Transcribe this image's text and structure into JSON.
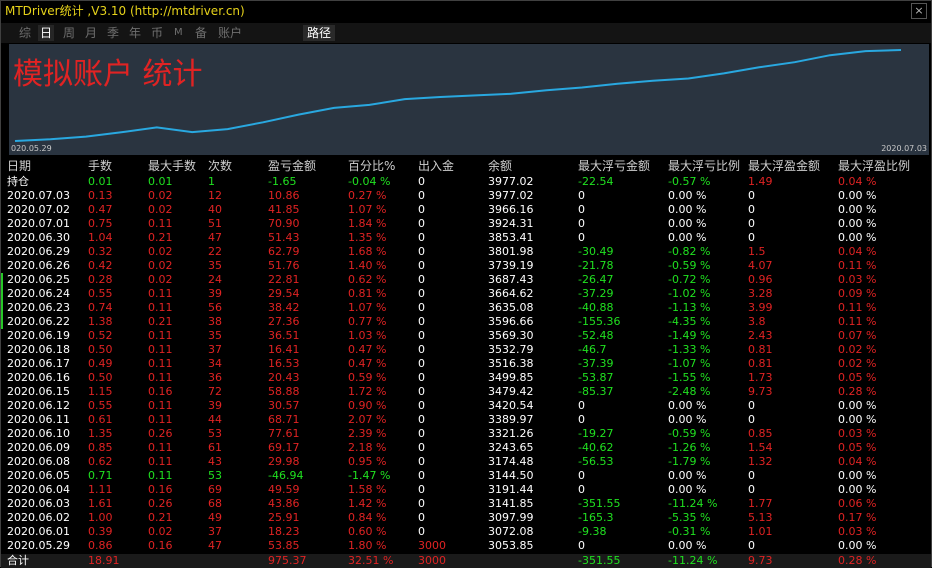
{
  "window": {
    "title": "MTDriver统计 ,V3.10 (http://mtdriver.cn)",
    "close": "×"
  },
  "toolbar": {
    "tabs": [
      "综",
      "日",
      "周",
      "月",
      "季",
      "年",
      "币",
      "M",
      "备",
      "账户"
    ],
    "active_tab": "日",
    "route_label": "路径"
  },
  "chart": {
    "title": "模拟账户 统计",
    "x_start_label": "020.05.29",
    "x_end_label": "2020.07.03",
    "line_color": "#29a8e0"
  },
  "chart_data": {
    "type": "line",
    "title": "模拟账户 统计",
    "categories": [
      "2020.05.29",
      "2020.06.01",
      "2020.06.02",
      "2020.06.03",
      "2020.06.04",
      "2020.06.05",
      "2020.06.08",
      "2020.06.09",
      "2020.06.10",
      "2020.06.11",
      "2020.06.12",
      "2020.06.15",
      "2020.06.16",
      "2020.06.17",
      "2020.06.18",
      "2020.06.19",
      "2020.06.22",
      "2020.06.23",
      "2020.06.24",
      "2020.06.25",
      "2020.06.26",
      "2020.06.29",
      "2020.06.30",
      "2020.07.01",
      "2020.07.02",
      "2020.07.03"
    ],
    "series": [
      {
        "values": [
          3053.85,
          3072.08,
          3097.99,
          3141.85,
          3191.44,
          3144.5,
          3174.48,
          3243.65,
          3321.26,
          3389.97,
          3420.54,
          3479.42,
          3499.85,
          3516.38,
          3532.79,
          3569.3,
          3596.66,
          3635.08,
          3664.62,
          3687.43,
          3739.19,
          3801.98,
          3853.41,
          3924.31,
          3966.16,
          3977.02
        ]
      }
    ]
  },
  "table": {
    "headers": [
      "日期",
      "手数",
      "最大手数",
      "次数",
      "盈亏金额",
      "百分比%",
      "出入金",
      "余额",
      "最大浮亏金额",
      "最大浮亏比例",
      "最大浮盈金额",
      "最大浮盈比例"
    ],
    "rows": [
      {
        "date": "持仓",
        "lots": "0.01",
        "max_lots": "0.01",
        "count": "1",
        "pl": "-1.65",
        "pct": "-0.04 %",
        "io": "0",
        "balance": "3977.02",
        "mfl": "-22.54",
        "mflp": "-0.57 %",
        "mfp": "1.49",
        "mfpp": "0.04 %",
        "color": "green",
        "marker": false
      },
      {
        "date": "2020.07.03",
        "lots": "0.13",
        "max_lots": "0.02",
        "count": "12",
        "pl": "10.86",
        "pct": "0.27 %",
        "io": "0",
        "balance": "3977.02",
        "mfl": "0",
        "mflp": "0.00 %",
        "mfp": "0",
        "mfpp": "0.00 %",
        "color": "red",
        "marker": false
      },
      {
        "date": "2020.07.02",
        "lots": "0.47",
        "max_lots": "0.02",
        "count": "40",
        "pl": "41.85",
        "pct": "1.07 %",
        "io": "0",
        "balance": "3966.16",
        "mfl": "0",
        "mflp": "0.00 %",
        "mfp": "0",
        "mfpp": "0.00 %",
        "color": "red",
        "marker": false
      },
      {
        "date": "2020.07.01",
        "lots": "0.75",
        "max_lots": "0.11",
        "count": "51",
        "pl": "70.90",
        "pct": "1.84 %",
        "io": "0",
        "balance": "3924.31",
        "mfl": "0",
        "mflp": "0.00 %",
        "mfp": "0",
        "mfpp": "0.00 %",
        "color": "red",
        "marker": false
      },
      {
        "date": "2020.06.30",
        "lots": "1.04",
        "max_lots": "0.21",
        "count": "47",
        "pl": "51.43",
        "pct": "1.35 %",
        "io": "0",
        "balance": "3853.41",
        "mfl": "0",
        "mflp": "0.00 %",
        "mfp": "0",
        "mfpp": "0.00 %",
        "color": "red",
        "marker": false
      },
      {
        "date": "2020.06.29",
        "lots": "0.32",
        "max_lots": "0.02",
        "count": "22",
        "pl": "62.79",
        "pct": "1.68 %",
        "io": "0",
        "balance": "3801.98",
        "mfl": "-30.49",
        "mflp": "-0.82 %",
        "mfp": "1.5",
        "mfpp": "0.04 %",
        "color": "red",
        "marker": false
      },
      {
        "date": "2020.06.26",
        "lots": "0.42",
        "max_lots": "0.02",
        "count": "35",
        "pl": "51.76",
        "pct": "1.40 %",
        "io": "0",
        "balance": "3739.19",
        "mfl": "-21.78",
        "mflp": "-0.59 %",
        "mfp": "4.07",
        "mfpp": "0.11 %",
        "color": "red",
        "marker": false
      },
      {
        "date": "2020.06.25",
        "lots": "0.28",
        "max_lots": "0.02",
        "count": "24",
        "pl": "22.81",
        "pct": "0.62 %",
        "io": "0",
        "balance": "3687.43",
        "mfl": "-26.47",
        "mflp": "-0.72 %",
        "mfp": "0.96",
        "mfpp": "0.03 %",
        "color": "red",
        "marker": true
      },
      {
        "date": "2020.06.24",
        "lots": "0.55",
        "max_lots": "0.11",
        "count": "39",
        "pl": "29.54",
        "pct": "0.81 %",
        "io": "0",
        "balance": "3664.62",
        "mfl": "-37.29",
        "mflp": "-1.02 %",
        "mfp": "3.28",
        "mfpp": "0.09 %",
        "color": "red",
        "marker": true
      },
      {
        "date": "2020.06.23",
        "lots": "0.74",
        "max_lots": "0.11",
        "count": "56",
        "pl": "38.42",
        "pct": "1.07 %",
        "io": "0",
        "balance": "3635.08",
        "mfl": "-40.88",
        "mflp": "-1.13 %",
        "mfp": "3.99",
        "mfpp": "0.11 %",
        "color": "red",
        "marker": true
      },
      {
        "date": "2020.06.22",
        "lots": "1.38",
        "max_lots": "0.21",
        "count": "38",
        "pl": "27.36",
        "pct": "0.77 %",
        "io": "0",
        "balance": "3596.66",
        "mfl": "-155.36",
        "mflp": "-4.35 %",
        "mfp": "3.8",
        "mfpp": "0.11 %",
        "color": "red",
        "marker": true
      },
      {
        "date": "2020.06.19",
        "lots": "0.52",
        "max_lots": "0.11",
        "count": "35",
        "pl": "36.51",
        "pct": "1.03 %",
        "io": "0",
        "balance": "3569.30",
        "mfl": "-52.48",
        "mflp": "-1.49 %",
        "mfp": "2.43",
        "mfpp": "0.07 %",
        "color": "red",
        "marker": false
      },
      {
        "date": "2020.06.18",
        "lots": "0.50",
        "max_lots": "0.11",
        "count": "37",
        "pl": "16.41",
        "pct": "0.47 %",
        "io": "0",
        "balance": "3532.79",
        "mfl": "-46.7",
        "mflp": "-1.33 %",
        "mfp": "0.81",
        "mfpp": "0.02 %",
        "color": "red",
        "marker": false
      },
      {
        "date": "2020.06.17",
        "lots": "0.49",
        "max_lots": "0.11",
        "count": "34",
        "pl": "16.53",
        "pct": "0.47 %",
        "io": "0",
        "balance": "3516.38",
        "mfl": "-37.39",
        "mflp": "-1.07 %",
        "mfp": "0.81",
        "mfpp": "0.02 %",
        "color": "red",
        "marker": false
      },
      {
        "date": "2020.06.16",
        "lots": "0.50",
        "max_lots": "0.11",
        "count": "36",
        "pl": "20.43",
        "pct": "0.59 %",
        "io": "0",
        "balance": "3499.85",
        "mfl": "-53.87",
        "mflp": "-1.55 %",
        "mfp": "1.73",
        "mfpp": "0.05 %",
        "color": "red",
        "marker": false
      },
      {
        "date": "2020.06.15",
        "lots": "1.15",
        "max_lots": "0.16",
        "count": "72",
        "pl": "58.88",
        "pct": "1.72 %",
        "io": "0",
        "balance": "3479.42",
        "mfl": "-85.37",
        "mflp": "-2.48 %",
        "mfp": "9.73",
        "mfpp": "0.28 %",
        "color": "red",
        "marker": false
      },
      {
        "date": "2020.06.12",
        "lots": "0.55",
        "max_lots": "0.11",
        "count": "39",
        "pl": "30.57",
        "pct": "0.90 %",
        "io": "0",
        "balance": "3420.54",
        "mfl": "0",
        "mflp": "0.00 %",
        "mfp": "0",
        "mfpp": "0.00 %",
        "color": "red",
        "marker": false
      },
      {
        "date": "2020.06.11",
        "lots": "0.61",
        "max_lots": "0.11",
        "count": "44",
        "pl": "68.71",
        "pct": "2.07 %",
        "io": "0",
        "balance": "3389.97",
        "mfl": "0",
        "mflp": "0.00 %",
        "mfp": "0",
        "mfpp": "0.00 %",
        "color": "red",
        "marker": false
      },
      {
        "date": "2020.06.10",
        "lots": "1.35",
        "max_lots": "0.26",
        "count": "53",
        "pl": "77.61",
        "pct": "2.39 %",
        "io": "0",
        "balance": "3321.26",
        "mfl": "-19.27",
        "mflp": "-0.59 %",
        "mfp": "0.85",
        "mfpp": "0.03 %",
        "color": "red",
        "marker": false
      },
      {
        "date": "2020.06.09",
        "lots": "0.85",
        "max_lots": "0.11",
        "count": "61",
        "pl": "69.17",
        "pct": "2.18 %",
        "io": "0",
        "balance": "3243.65",
        "mfl": "-40.62",
        "mflp": "-1.26 %",
        "mfp": "1.54",
        "mfpp": "0.05 %",
        "color": "red",
        "marker": false
      },
      {
        "date": "2020.06.08",
        "lots": "0.62",
        "max_lots": "0.11",
        "count": "43",
        "pl": "29.98",
        "pct": "0.95 %",
        "io": "0",
        "balance": "3174.48",
        "mfl": "-56.53",
        "mflp": "-1.79 %",
        "mfp": "1.32",
        "mfpp": "0.04 %",
        "color": "red",
        "marker": false
      },
      {
        "date": "2020.06.05",
        "lots": "0.71",
        "max_lots": "0.11",
        "count": "53",
        "pl": "-46.94",
        "pct": "-1.47 %",
        "io": "0",
        "balance": "3144.50",
        "mfl": "0",
        "mflp": "0.00 %",
        "mfp": "0",
        "mfpp": "0.00 %",
        "color": "green",
        "marker": false
      },
      {
        "date": "2020.06.04",
        "lots": "1.11",
        "max_lots": "0.16",
        "count": "69",
        "pl": "49.59",
        "pct": "1.58 %",
        "io": "0",
        "balance": "3191.44",
        "mfl": "0",
        "mflp": "0.00 %",
        "mfp": "0",
        "mfpp": "0.00 %",
        "color": "red",
        "marker": false
      },
      {
        "date": "2020.06.03",
        "lots": "1.61",
        "max_lots": "0.26",
        "count": "68",
        "pl": "43.86",
        "pct": "1.42 %",
        "io": "0",
        "balance": "3141.85",
        "mfl": "-351.55",
        "mflp": "-11.24 %",
        "mfp": "1.77",
        "mfpp": "0.06 %",
        "color": "red",
        "marker": false
      },
      {
        "date": "2020.06.02",
        "lots": "1.00",
        "max_lots": "0.21",
        "count": "49",
        "pl": "25.91",
        "pct": "0.84 %",
        "io": "0",
        "balance": "3097.99",
        "mfl": "-165.3",
        "mflp": "-5.35 %",
        "mfp": "5.13",
        "mfpp": "0.17 %",
        "color": "red",
        "marker": false
      },
      {
        "date": "2020.06.01",
        "lots": "0.39",
        "max_lots": "0.02",
        "count": "37",
        "pl": "18.23",
        "pct": "0.60 %",
        "io": "0",
        "balance": "3072.08",
        "mfl": "-9.38",
        "mflp": "-0.31 %",
        "mfp": "1.01",
        "mfpp": "0.03 %",
        "color": "red",
        "marker": false
      },
      {
        "date": "2020.05.29",
        "lots": "0.86",
        "max_lots": "0.16",
        "count": "47",
        "pl": "53.85",
        "pct": "1.80 %",
        "io": "3000",
        "balance": "3053.85",
        "mfl": "0",
        "mflp": "0.00 %",
        "mfp": "0",
        "mfpp": "0.00 %",
        "color": "red",
        "marker": false
      }
    ],
    "total": {
      "date": "合计",
      "lots": "18.91",
      "max_lots": "",
      "count": "",
      "pl": "975.37",
      "pct": "32.51 %",
      "io": "3000",
      "balance": "",
      "mfl": "-351.55",
      "mflp": "-11.24 %",
      "mfp": "9.73",
      "mfpp": "0.28 %"
    }
  },
  "colors": {
    "profit": "#e02323",
    "loss": "#20e020",
    "accent": "#e6d21a",
    "chart_bg": "#2a3440"
  }
}
